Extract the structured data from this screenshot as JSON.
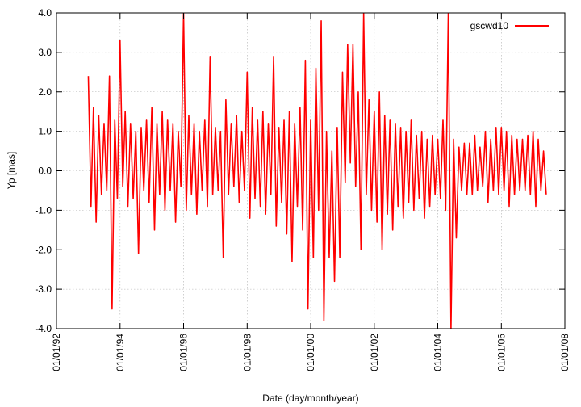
{
  "chart_data": {
    "type": "line",
    "x_label": "Date (day/month/year)",
    "y_label": "Yp [mas]",
    "xlim": [
      "1992-01-01",
      "2008-01-01"
    ],
    "xticks": [
      {
        "value": "1992-01-01",
        "label": "01/01/92"
      },
      {
        "value": "1994-01-01",
        "label": "01/01/94"
      },
      {
        "value": "1996-01-01",
        "label": "01/01/96"
      },
      {
        "value": "1998-01-01",
        "label": "01/01/98"
      },
      {
        "value": "2000-01-01",
        "label": "01/01/00"
      },
      {
        "value": "2002-01-01",
        "label": "01/01/02"
      },
      {
        "value": "2004-01-01",
        "label": "01/01/04"
      },
      {
        "value": "2006-01-01",
        "label": "01/01/06"
      },
      {
        "value": "2008-01-01",
        "label": "01/01/08"
      }
    ],
    "ylim": [
      -4,
      4
    ],
    "yticks": [
      {
        "value": -4,
        "label": "-4.0"
      },
      {
        "value": -3,
        "label": "-3.0"
      },
      {
        "value": -2,
        "label": "-2.0"
      },
      {
        "value": -1,
        "label": "-1.0"
      },
      {
        "value": 0,
        "label": "0.0"
      },
      {
        "value": 1,
        "label": "1.0"
      },
      {
        "value": 2,
        "label": "2.0"
      },
      {
        "value": 3,
        "label": "3.0"
      },
      {
        "value": 4,
        "label": "4.0"
      }
    ],
    "grid": true,
    "legend": "top-right",
    "x": [
      "1993-01-01",
      "1993-02-01",
      "1993-03-01",
      "1993-04-01",
      "1993-05-01",
      "1993-06-01",
      "1993-07-01",
      "1993-08-01",
      "1993-09-01",
      "1993-10-01",
      "1993-11-01",
      "1993-12-01",
      "1994-01-01",
      "1994-02-01",
      "1994-03-01",
      "1994-04-01",
      "1994-05-01",
      "1994-06-01",
      "1994-07-01",
      "1994-08-01",
      "1994-09-01",
      "1994-10-01",
      "1994-11-01",
      "1994-12-01",
      "1995-01-01",
      "1995-02-01",
      "1995-03-01",
      "1995-04-01",
      "1995-05-01",
      "1995-06-01",
      "1995-07-01",
      "1995-08-01",
      "1995-09-01",
      "1995-10-01",
      "1995-11-01",
      "1995-12-01",
      "1996-01-01",
      "1996-02-01",
      "1996-03-01",
      "1996-04-01",
      "1996-05-01",
      "1996-06-01",
      "1996-07-01",
      "1996-08-01",
      "1996-09-01",
      "1996-10-01",
      "1996-11-01",
      "1996-12-01",
      "1997-01-01",
      "1997-02-01",
      "1997-03-01",
      "1997-04-01",
      "1997-05-01",
      "1997-06-01",
      "1997-07-01",
      "1997-08-01",
      "1997-09-01",
      "1997-10-01",
      "1997-11-01",
      "1997-12-01",
      "1998-01-01",
      "1998-02-01",
      "1998-03-01",
      "1998-04-01",
      "1998-05-01",
      "1998-06-01",
      "1998-07-01",
      "1998-08-01",
      "1998-09-01",
      "1998-10-01",
      "1998-11-01",
      "1998-12-01",
      "1999-01-01",
      "1999-02-01",
      "1999-03-01",
      "1999-04-01",
      "1999-05-01",
      "1999-06-01",
      "1999-07-01",
      "1999-08-01",
      "1999-09-01",
      "1999-10-01",
      "1999-11-01",
      "1999-12-01",
      "2000-01-01",
      "2000-02-01",
      "2000-03-01",
      "2000-04-01",
      "2000-05-01",
      "2000-06-01",
      "2000-07-01",
      "2000-08-01",
      "2000-09-01",
      "2000-10-01",
      "2000-11-01",
      "2000-12-01",
      "2001-01-01",
      "2001-02-01",
      "2001-03-01",
      "2001-04-01",
      "2001-05-01",
      "2001-06-01",
      "2001-07-01",
      "2001-08-01",
      "2001-09-01",
      "2001-10-01",
      "2001-11-01",
      "2001-12-01",
      "2002-01-01",
      "2002-02-01",
      "2002-03-01",
      "2002-04-01",
      "2002-05-01",
      "2002-06-01",
      "2002-07-01",
      "2002-08-01",
      "2002-09-01",
      "2002-10-01",
      "2002-11-01",
      "2002-12-01",
      "2003-01-01",
      "2003-02-01",
      "2003-03-01",
      "2003-04-01",
      "2003-05-01",
      "2003-06-01",
      "2003-07-01",
      "2003-08-01",
      "2003-09-01",
      "2003-10-01",
      "2003-11-01",
      "2003-12-01",
      "2004-01-01",
      "2004-02-01",
      "2004-03-01",
      "2004-04-01",
      "2004-05-01",
      "2004-06-01",
      "2004-07-01",
      "2004-08-01",
      "2004-09-01",
      "2004-10-01",
      "2004-11-01",
      "2004-12-01",
      "2005-01-01",
      "2005-02-01",
      "2005-03-01",
      "2005-04-01",
      "2005-05-01",
      "2005-06-01",
      "2005-07-01",
      "2005-08-01",
      "2005-09-01",
      "2005-10-01",
      "2005-11-01",
      "2005-12-01",
      "2006-01-01",
      "2006-02-01",
      "2006-03-01",
      "2006-04-01",
      "2006-05-01",
      "2006-06-01",
      "2006-07-01",
      "2006-08-01",
      "2006-09-01",
      "2006-10-01",
      "2006-11-01",
      "2006-12-01",
      "2007-01-01",
      "2007-02-01",
      "2007-03-01",
      "2007-04-01",
      "2007-05-01",
      "2007-06-01"
    ],
    "series": [
      {
        "name": "gscwd10",
        "color": "#ff0000",
        "values": [
          2.4,
          -0.9,
          1.6,
          -1.3,
          1.4,
          -0.6,
          1.2,
          -0.5,
          2.4,
          -3.5,
          1.3,
          -0.7,
          3.3,
          -0.4,
          1.5,
          -0.9,
          1.2,
          -0.7,
          1.0,
          -2.1,
          1.1,
          -0.5,
          1.3,
          -0.8,
          1.6,
          -1.5,
          1.2,
          -0.6,
          1.5,
          -1.0,
          1.3,
          -0.5,
          1.2,
          -1.3,
          1.0,
          -0.4,
          4.0,
          -1.0,
          1.4,
          -0.6,
          1.2,
          -1.1,
          1.0,
          -0.5,
          1.3,
          -0.9,
          2.9,
          -0.6,
          1.1,
          -0.5,
          1.0,
          -2.2,
          1.8,
          -0.6,
          1.2,
          -0.4,
          1.4,
          -0.8,
          1.0,
          -0.5,
          2.5,
          -1.2,
          1.6,
          -0.7,
          1.3,
          -0.9,
          1.5,
          -1.1,
          1.2,
          -0.6,
          2.9,
          -1.4,
          1.1,
          -0.8,
          1.3,
          -1.6,
          1.5,
          -2.3,
          1.2,
          -0.9,
          1.6,
          -1.5,
          2.8,
          -3.5,
          1.3,
          -2.2,
          2.6,
          -1.0,
          3.8,
          -3.8,
          1.0,
          -2.2,
          0.5,
          -2.8,
          1.1,
          -2.2,
          2.5,
          -0.3,
          3.2,
          0.2,
          3.2,
          -0.4,
          2.0,
          -2.0,
          4.0,
          -0.6,
          1.8,
          -1.0,
          1.5,
          -1.3,
          2.0,
          -2.0,
          1.4,
          -1.1,
          1.3,
          -1.5,
          1.2,
          -0.9,
          1.1,
          -1.2,
          1.0,
          -0.8,
          1.3,
          -1.0,
          0.9,
          -0.7,
          1.0,
          -1.2,
          0.8,
          -0.9,
          0.9,
          -0.6,
          0.8,
          -0.7,
          1.3,
          -1.0,
          4.0,
          -4.0,
          0.8,
          -1.7,
          0.6,
          -0.5,
          0.7,
          -0.6,
          0.7,
          -0.6,
          0.9,
          -0.5,
          0.6,
          -0.4,
          1.0,
          -0.8,
          0.8,
          -0.5,
          1.1,
          -0.6,
          1.1,
          -0.5,
          1.0,
          -0.9,
          0.9,
          -0.6,
          0.8,
          -0.5,
          0.8,
          -0.5,
          0.9,
          -0.6,
          1.0,
          -0.9,
          0.8,
          -0.5,
          0.5,
          -0.6
        ]
      }
    ]
  }
}
